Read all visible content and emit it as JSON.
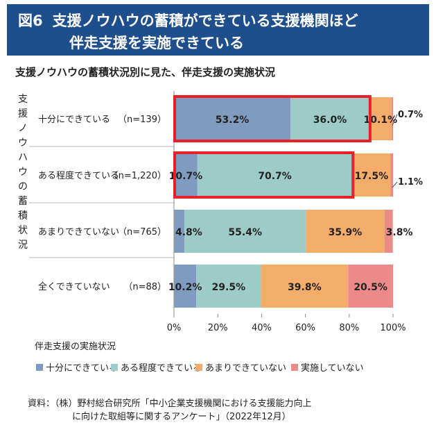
{
  "header": {
    "fig_label": "図6",
    "title_line1": "支援ノウハウの蓄積ができている支援機関ほど",
    "title_line2": "伴走支援を実施できている"
  },
  "subtitle": "支援ノウハウの蓄積状況別に見た、伴走支援の実施状況",
  "source": {
    "line1": "資料：（株）野村総合研究所「中小企業支援機関における支援能力向上",
    "line2": "に向けた取組等に関するアンケート」（2022年12月）"
  },
  "chart_data": {
    "type": "bar",
    "orientation": "horizontal",
    "stacked": true,
    "y_axis_title_vertical": "支援ノウハウの蓄積状況",
    "legend_title": "伴走支援の実施状況",
    "legend_position": "bottom",
    "categories": [
      "十分にできている",
      "ある程度できている",
      "あまりできていない",
      "全くできていない"
    ],
    "category_counts": [
      "（n=139）",
      "（n=1,220）",
      "（n=765）",
      "（n=88）"
    ],
    "series": [
      {
        "name": "十分にできている",
        "color": "#7f9cc0",
        "values": [
          53.2,
          10.7,
          4.8,
          10.2
        ]
      },
      {
        "name": "ある程度できている",
        "color": "#9dccc8",
        "values": [
          36.0,
          70.7,
          55.4,
          29.5
        ]
      },
      {
        "name": "あまりできていない",
        "color": "#f4ac6a",
        "values": [
          10.1,
          17.5,
          35.9,
          39.8
        ]
      },
      {
        "name": "実施していない",
        "color": "#ec8a89",
        "values": [
          0.7,
          1.1,
          3.8,
          20.5
        ]
      }
    ],
    "data_labels": [
      [
        "53.2%",
        "36.0%",
        "10.1%",
        "0.7%"
      ],
      [
        "10.7%",
        "70.7%",
        "17.5%",
        "1.1%"
      ],
      [
        "4.8%",
        "55.4%",
        "35.9%",
        "3.8%"
      ],
      [
        "10.2%",
        "29.5%",
        "39.8%",
        "20.5%"
      ]
    ],
    "xlim": [
      0,
      100
    ],
    "x_ticks": [
      "0%",
      "20%",
      "40%",
      "60%",
      "80%",
      "100%"
    ],
    "highlights": [
      {
        "row": 0,
        "from": 0,
        "to": 89.2,
        "color": "#e8202a"
      },
      {
        "row": 1,
        "from": 0,
        "to": 81.4,
        "color": "#e8202a"
      }
    ]
  }
}
